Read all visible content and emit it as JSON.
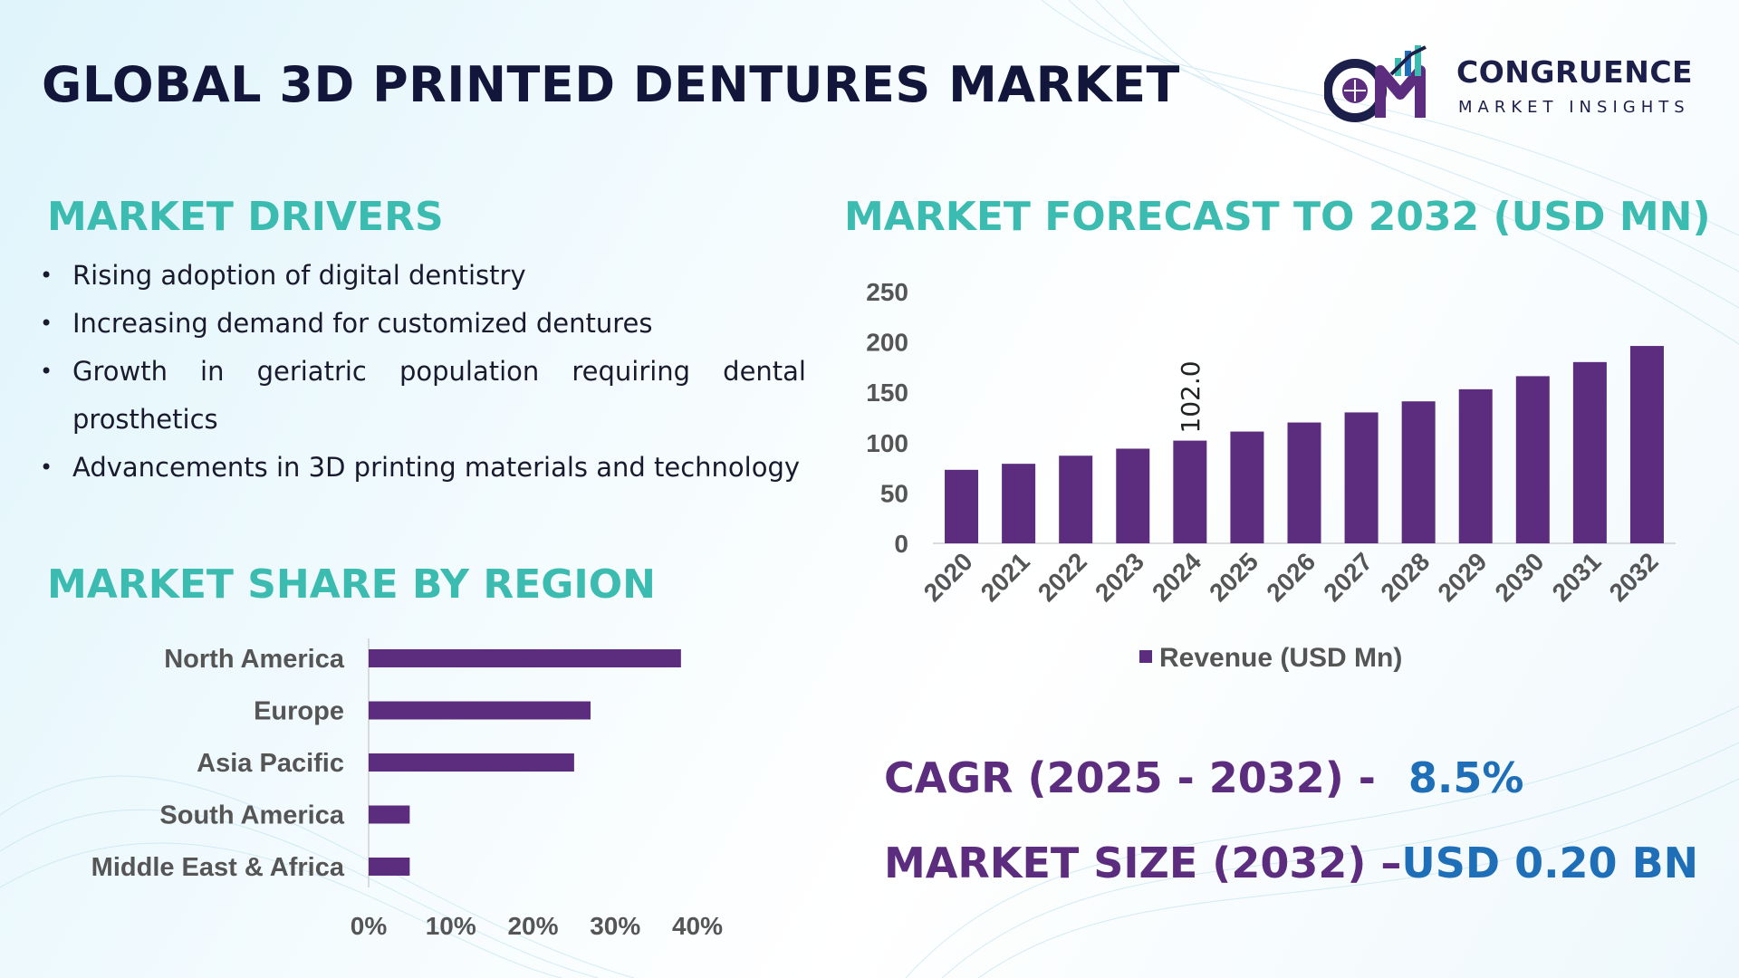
{
  "title": "GLOBAL 3D PRINTED DENTURES MARKET",
  "logo": {
    "line1": "CONGRUENCE",
    "line2": "MARKET INSIGHTS"
  },
  "drivers": {
    "title": "MARKET DRIVERS",
    "items": [
      "Rising adoption of digital dentistry",
      "Increasing demand for customized dentures",
      "Growth in geriatric population requiring dental prosthetics",
      "Advancements in 3D printing materials and technology"
    ]
  },
  "region": {
    "title": "MARKET SHARE BY REGION"
  },
  "forecast": {
    "title": "MARKET FORECAST TO 2032 (USD MN)"
  },
  "cagr": {
    "label": "CAGR (2025 - 2032) -",
    "value": "8.5%"
  },
  "market_size": {
    "label": "MARKET SIZE (2032) –",
    "value": "USD 0.20 BN"
  },
  "colors": {
    "bar": "#5c2d7e",
    "heading": "#3cbcb0",
    "highlight": "#1f6fb8",
    "title": "#12163a"
  },
  "chart_data": [
    {
      "type": "bar",
      "orientation": "vertical",
      "title": "MARKET FORECAST TO 2032 (USD MN)",
      "categories": [
        "2020",
        "2021",
        "2022",
        "2023",
        "2024",
        "2025",
        "2026",
        "2027",
        "2028",
        "2029",
        "2030",
        "2031",
        "2032"
      ],
      "series": [
        {
          "name": "Revenue (USD Mn)",
          "values": [
            73,
            79,
            87,
            94,
            102.0,
            111,
            120,
            130,
            141,
            153,
            166,
            180,
            196
          ]
        }
      ],
      "data_labels": {
        "2024": "102.0"
      },
      "ylim": [
        0,
        250
      ],
      "yticks": [
        0,
        50,
        100,
        150,
        200,
        250
      ],
      "grid": false,
      "legend": "bottom"
    },
    {
      "type": "bar",
      "orientation": "horizontal",
      "title": "MARKET SHARE BY REGION",
      "categories": [
        "North America",
        "Europe",
        "Asia Pacific",
        "South America",
        "Middle East & Africa"
      ],
      "values": [
        38,
        27,
        25,
        5,
        5
      ],
      "xlim": [
        0,
        40
      ],
      "xticks": [
        "0%",
        "10%",
        "20%",
        "30%",
        "40%"
      ],
      "grid": false
    }
  ]
}
